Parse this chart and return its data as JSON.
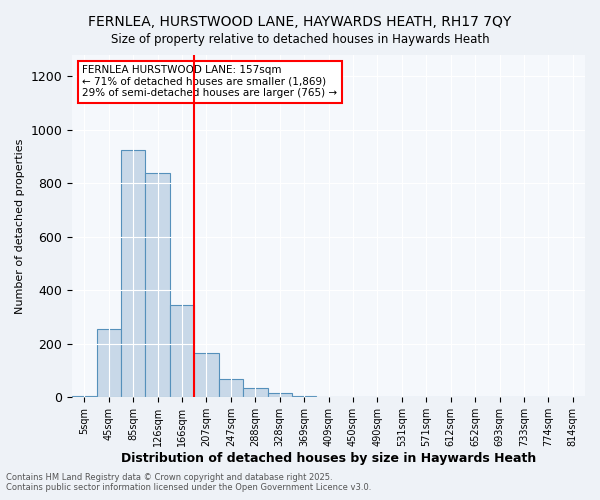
{
  "title1": "FERNLEA, HURSTWOOD LANE, HAYWARDS HEATH, RH17 7QY",
  "title2": "Size of property relative to detached houses in Haywards Heath",
  "xlabel": "Distribution of detached houses by size in Haywards Heath",
  "ylabel": "Number of detached properties",
  "categories": [
    "5sqm",
    "45sqm",
    "85sqm",
    "126sqm",
    "166sqm",
    "207sqm",
    "247sqm",
    "288sqm",
    "328sqm",
    "369sqm",
    "409sqm",
    "450sqm",
    "490sqm",
    "531sqm",
    "571sqm",
    "612sqm",
    "652sqm",
    "693sqm",
    "733sqm",
    "774sqm",
    "814sqm"
  ],
  "values": [
    5,
    255,
    925,
    840,
    345,
    165,
    70,
    35,
    15,
    5,
    3,
    1,
    0,
    0,
    0,
    0,
    0,
    1,
    0,
    0,
    0
  ],
  "bar_color": "#c8d8e8",
  "bar_edge_color": "#5590bb",
  "red_line_x": 4.5,
  "annotation_title": "FERNLEA HURSTWOOD LANE: 157sqm",
  "annotation_line1": "← 71% of detached houses are smaller (1,869)",
  "annotation_line2": "29% of semi-detached houses are larger (765) →",
  "footer1": "Contains HM Land Registry data © Crown copyright and database right 2025.",
  "footer2": "Contains public sector information licensed under the Open Government Licence v3.0.",
  "ylim": [
    0,
    1280
  ],
  "bg_color": "#eef2f7",
  "plot_bg_color": "#f5f8fc"
}
